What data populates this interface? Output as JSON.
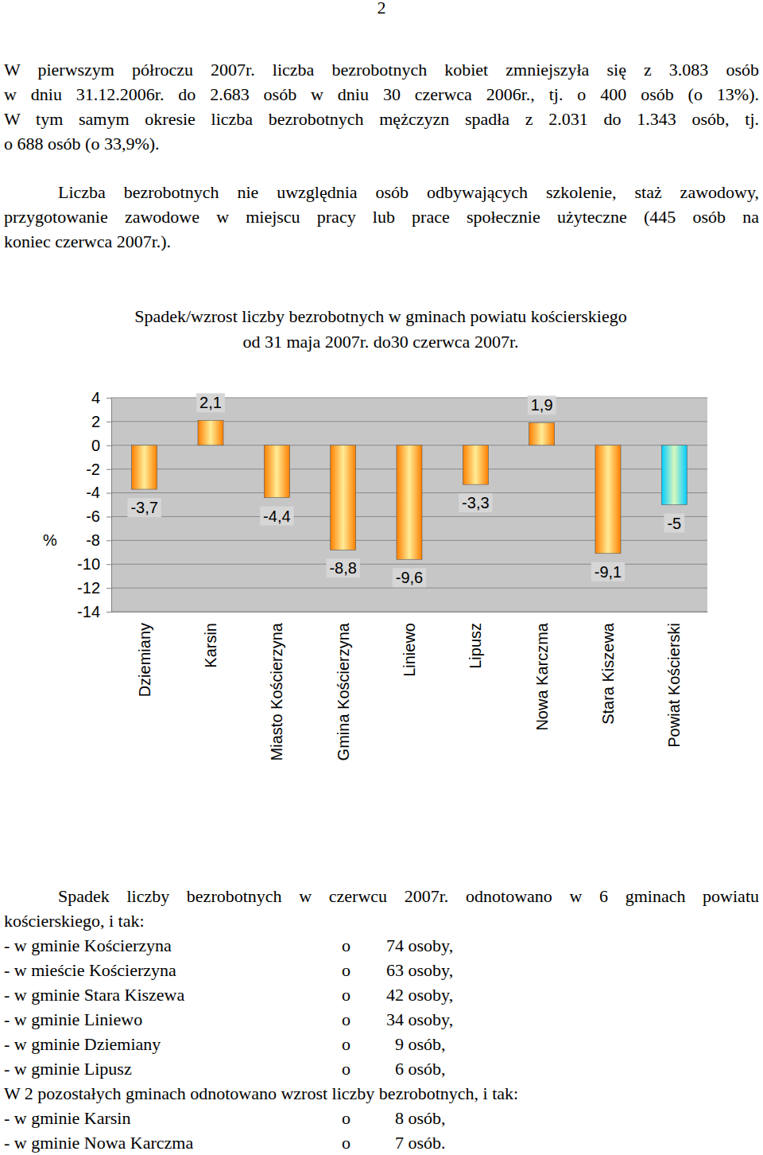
{
  "page_number": "2",
  "intro": [
    {
      "lines": [
        "W pierwszym półroczu 2007r. liczba bezrobotnych kobiet zmniejszyła się z 3.083 osób",
        "w dniu 31.12.2006r. do 2.683 osób w dniu 30 czerwca 2006r., tj. o 400 osób (o 13%).",
        "W tym samym okresie liczba bezrobotnych mężczyzn spadła z 2.031 do 1.343 osób, tj.",
        "o 688 osób (o 33,9%)."
      ]
    },
    {
      "lines": [
        "Liczba bezrobotnych nie uwzględnia osób odbywających szkolenie, staż zawodowy,",
        "przygotowanie zawodowe w miejscu pracy lub prace społecznie użyteczne (445 osób na",
        "koniec czerwca 2007r.)."
      ]
    }
  ],
  "chart_data": {
    "type": "bar",
    "title": "Spadek/wzrost liczby bezrobotnych w gminach powiatu kościerskiego",
    "subtitle": "od 31 maja 2007r. do30 czerwca 2007r.",
    "y_label": "%",
    "categories": [
      "Dziemiany",
      "Karsin",
      "Miasto Kościerzyna",
      "Gmina Kościerzyna",
      "Liniewo",
      "Lipusz",
      "Nowa Karczma",
      "Stara Kiszewa",
      "Powiat Kościerski"
    ],
    "values": [
      -3.7,
      2.1,
      -4.4,
      -8.8,
      -9.6,
      -3.3,
      1.9,
      -9.1,
      -5
    ],
    "value_labels": [
      "-3,7",
      "2,1",
      "-4,4",
      "-8,8",
      "-9,6",
      "-3,3",
      "1,9",
      "-9,1",
      "-5"
    ],
    "colors": [
      "#ff7f00",
      "#ff7f00",
      "#ff7f00",
      "#ff7f00",
      "#ff7f00",
      "#ff7f00",
      "#ff7f00",
      "#ff7f00",
      "#00ccff"
    ],
    "ylim": [
      -14,
      4
    ],
    "yticks": [
      4,
      2,
      0,
      -2,
      -4,
      -6,
      -8,
      -10,
      -12,
      -14
    ],
    "grid": true,
    "data_labels": true
  },
  "summary": {
    "intro": {
      "lines": [
        "Spadek liczby bezrobotnych w czerwcu 2007r. odnotowano w 6 gminach powiatu",
        "kościerskiego, i tak:"
      ]
    },
    "decreases": [
      {
        "label": "- w gminie Kościerzyna",
        "sign": "o",
        "amount": "74 osoby,"
      },
      {
        "label": "- w mieście Kościerzyna",
        "sign": "o",
        "amount": "63 osoby,"
      },
      {
        "label": "- w gminie Stara Kiszewa",
        "sign": "o",
        "amount": "42 osoby,"
      },
      {
        "label": "- w gminie Liniewo",
        "sign": "o",
        "amount": "34 osoby,"
      },
      {
        "label": "- w gminie Dziemiany",
        "sign": "o",
        "amount": "9 osób,"
      },
      {
        "label": "- w gminie Lipusz",
        "sign": "o",
        "amount": "6 osób,"
      }
    ],
    "increase_intro": "W 2 pozostałych gminach odnotowano wzrost liczby bezrobotnych, i tak:",
    "increases": [
      {
        "label": "- w gminie Karsin",
        "sign": "o",
        "amount": "8 osób,"
      },
      {
        "label": "- w gminie Nowa Karczma",
        "sign": "o",
        "amount": "7 osób."
      }
    ]
  }
}
